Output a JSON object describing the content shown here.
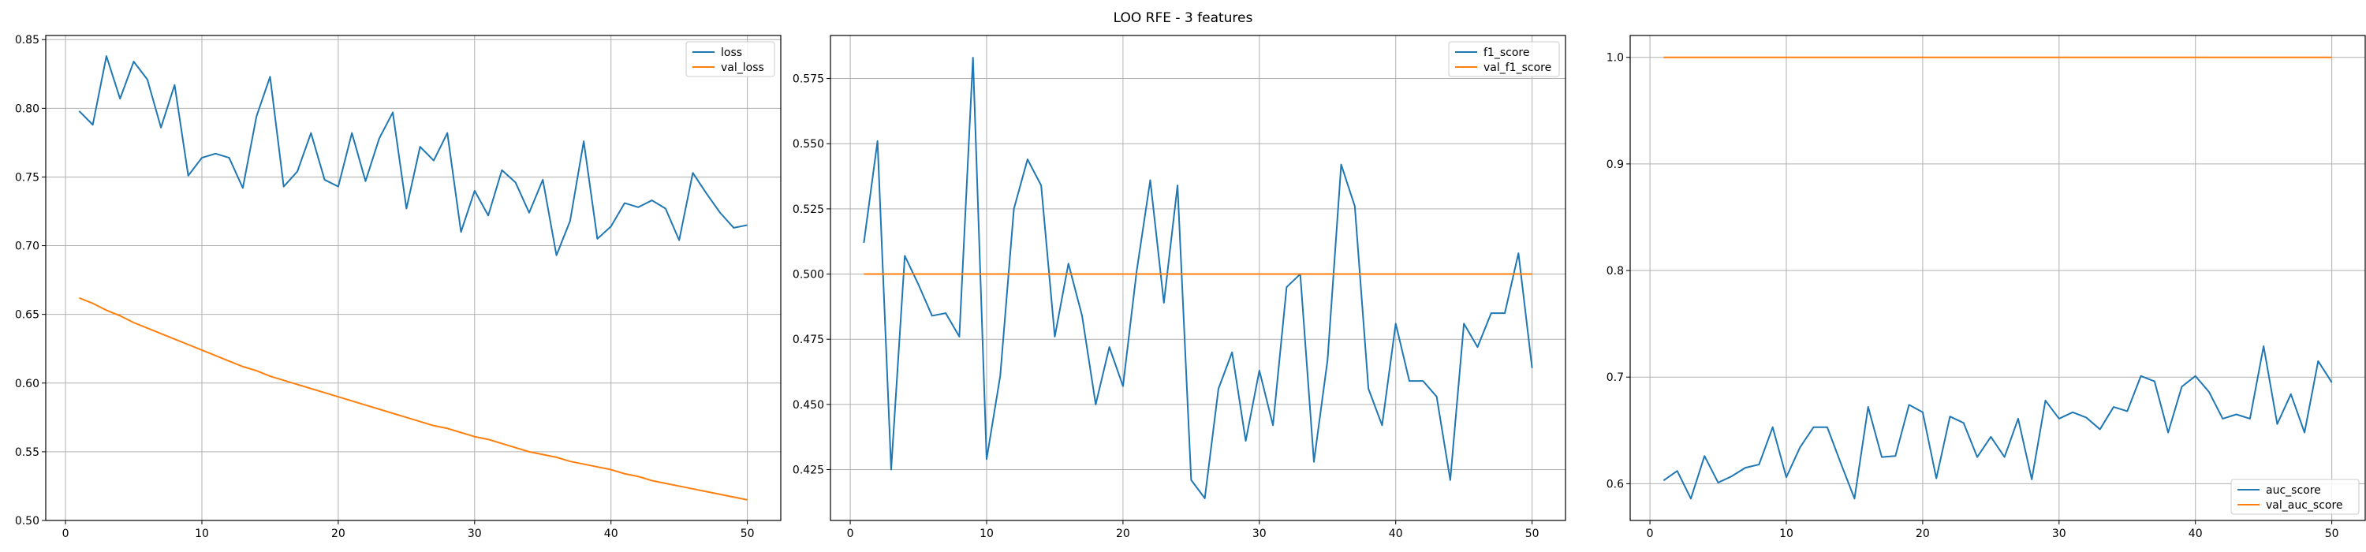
{
  "figure": {
    "suptitle": "LOO RFE - 3 features"
  },
  "colors": {
    "train": "#1f77b4",
    "val": "#ff7f0e",
    "grid": "#b0b0b0",
    "axis": "#000000"
  },
  "chart_data": [
    {
      "type": "line",
      "title": "",
      "xlabel": "",
      "ylabel": "",
      "grid": true,
      "legend_position": "upper-right",
      "xlim": [
        -1.45,
        52.45
      ],
      "ylim": [
        0.5,
        0.853
      ],
      "xticks": [
        0,
        10,
        20,
        30,
        40,
        50
      ],
      "xtick_labels": [
        "0",
        "10",
        "20",
        "30",
        "40",
        "50"
      ],
      "yticks": [
        0.5,
        0.55,
        0.6,
        0.65,
        0.7,
        0.75,
        0.8,
        0.85
      ],
      "ytick_labels": [
        "0.50",
        "0.55",
        "0.60",
        "0.65",
        "0.70",
        "0.75",
        "0.80",
        "0.85"
      ],
      "x": [
        1,
        2,
        3,
        4,
        5,
        6,
        7,
        8,
        9,
        10,
        11,
        12,
        13,
        14,
        15,
        16,
        17,
        18,
        19,
        20,
        21,
        22,
        23,
        24,
        25,
        26,
        27,
        28,
        29,
        30,
        31,
        32,
        33,
        34,
        35,
        36,
        37,
        38,
        39,
        40,
        41,
        42,
        43,
        44,
        45,
        46,
        47,
        48,
        49,
        50
      ],
      "series": [
        {
          "name": "loss",
          "color": "#1f77b4",
          "values": [
            0.798,
            0.788,
            0.838,
            0.807,
            0.834,
            0.821,
            0.786,
            0.817,
            0.751,
            0.764,
            0.767,
            0.764,
            0.742,
            0.794,
            0.823,
            0.743,
            0.754,
            0.782,
            0.748,
            0.743,
            0.782,
            0.747,
            0.778,
            0.797,
            0.727,
            0.772,
            0.762,
            0.782,
            0.71,
            0.74,
            0.722,
            0.755,
            0.746,
            0.724,
            0.748,
            0.693,
            0.718,
            0.776,
            0.705,
            0.714,
            0.731,
            0.728,
            0.733,
            0.727,
            0.704,
            0.753,
            0.738,
            0.724,
            0.713,
            0.715
          ]
        },
        {
          "name": "val_loss",
          "color": "#ff7f0e",
          "values": [
            0.662,
            0.658,
            0.653,
            0.649,
            0.644,
            0.64,
            0.636,
            0.632,
            0.628,
            0.624,
            0.62,
            0.616,
            0.612,
            0.609,
            0.605,
            0.602,
            0.599,
            0.596,
            0.593,
            0.59,
            0.587,
            0.584,
            0.581,
            0.578,
            0.575,
            0.572,
            0.569,
            0.567,
            0.564,
            0.561,
            0.559,
            0.556,
            0.553,
            0.55,
            0.548,
            0.546,
            0.543,
            0.541,
            0.539,
            0.537,
            0.534,
            0.532,
            0.529,
            0.527,
            0.525,
            0.523,
            0.521,
            0.519,
            0.517,
            0.515
          ]
        }
      ]
    },
    {
      "type": "line",
      "title": "",
      "xlabel": "",
      "ylabel": "",
      "grid": true,
      "legend_position": "upper-right",
      "xlim": [
        -1.45,
        52.45
      ],
      "ylim": [
        0.4055,
        0.5915
      ],
      "xticks": [
        0,
        10,
        20,
        30,
        40,
        50
      ],
      "xtick_labels": [
        "0",
        "10",
        "20",
        "30",
        "40",
        "50"
      ],
      "yticks": [
        0.425,
        0.45,
        0.475,
        0.5,
        0.525,
        0.55,
        0.575
      ],
      "ytick_labels": [
        "0.425",
        "0.450",
        "0.475",
        "0.500",
        "0.525",
        "0.550",
        "0.575"
      ],
      "x": [
        1,
        2,
        3,
        4,
        5,
        6,
        7,
        8,
        9,
        10,
        11,
        12,
        13,
        14,
        15,
        16,
        17,
        18,
        19,
        20,
        21,
        22,
        23,
        24,
        25,
        26,
        27,
        28,
        29,
        30,
        31,
        32,
        33,
        34,
        35,
        36,
        37,
        38,
        39,
        40,
        41,
        42,
        43,
        44,
        45,
        46,
        47,
        48,
        49,
        50
      ],
      "series": [
        {
          "name": "f1_score",
          "color": "#1f77b4",
          "values": [
            0.512,
            0.551,
            0.425,
            0.507,
            0.496,
            0.484,
            0.485,
            0.476,
            0.583,
            0.429,
            0.461,
            0.525,
            0.544,
            0.534,
            0.476,
            0.504,
            0.484,
            0.45,
            0.472,
            0.457,
            0.501,
            0.536,
            0.489,
            0.534,
            0.421,
            0.414,
            0.456,
            0.47,
            0.436,
            0.463,
            0.442,
            0.495,
            0.5,
            0.428,
            0.467,
            0.542,
            0.526,
            0.456,
            0.442,
            0.481,
            0.459,
            0.459,
            0.453,
            0.421,
            0.481,
            0.472,
            0.485,
            0.485,
            0.508,
            0.464
          ]
        },
        {
          "name": "val_f1_score",
          "color": "#ff7f0e",
          "values": [
            0.5,
            0.5,
            0.5,
            0.5,
            0.5,
            0.5,
            0.5,
            0.5,
            0.5,
            0.5,
            0.5,
            0.5,
            0.5,
            0.5,
            0.5,
            0.5,
            0.5,
            0.5,
            0.5,
            0.5,
            0.5,
            0.5,
            0.5,
            0.5,
            0.5,
            0.5,
            0.5,
            0.5,
            0.5,
            0.5,
            0.5,
            0.5,
            0.5,
            0.5,
            0.5,
            0.5,
            0.5,
            0.5,
            0.5,
            0.5,
            0.5,
            0.5,
            0.5,
            0.5,
            0.5,
            0.5,
            0.5,
            0.5,
            0.5,
            0.5
          ]
        }
      ]
    },
    {
      "type": "line",
      "title": "",
      "xlabel": "",
      "ylabel": "",
      "grid": true,
      "legend_position": "lower-right",
      "xlim": [
        -1.45,
        52.45
      ],
      "ylim": [
        0.5655,
        1.0205
      ],
      "xticks": [
        0,
        10,
        20,
        30,
        40,
        50
      ],
      "xtick_labels": [
        "0",
        "10",
        "20",
        "30",
        "40",
        "50"
      ],
      "yticks": [
        0.6,
        0.7,
        0.8,
        0.9,
        1.0
      ],
      "ytick_labels": [
        "0.6",
        "0.7",
        "0.8",
        "0.9",
        "1.0"
      ],
      "x": [
        1,
        2,
        3,
        4,
        5,
        6,
        7,
        8,
        9,
        10,
        11,
        12,
        13,
        14,
        15,
        16,
        17,
        18,
        19,
        20,
        21,
        22,
        23,
        24,
        25,
        26,
        27,
        28,
        29,
        30,
        31,
        32,
        33,
        34,
        35,
        36,
        37,
        38,
        39,
        40,
        41,
        42,
        43,
        44,
        45,
        46,
        47,
        48,
        49,
        50
      ],
      "series": [
        {
          "name": "auc_score",
          "color": "#1f77b4",
          "values": [
            0.603,
            0.612,
            0.586,
            0.626,
            0.601,
            0.607,
            0.615,
            0.618,
            0.653,
            0.606,
            0.634,
            0.653,
            0.653,
            0.619,
            0.586,
            0.672,
            0.625,
            0.626,
            0.674,
            0.667,
            0.605,
            0.663,
            0.657,
            0.625,
            0.644,
            0.625,
            0.661,
            0.604,
            0.678,
            0.661,
            0.667,
            0.662,
            0.651,
            0.672,
            0.668,
            0.701,
            0.696,
            0.648,
            0.691,
            0.701,
            0.686,
            0.661,
            0.665,
            0.661,
            0.729,
            0.656,
            0.684,
            0.648,
            0.715,
            0.695
          ]
        },
        {
          "name": "val_auc_score",
          "color": "#ff7f0e",
          "values": [
            1.0,
            1.0,
            1.0,
            1.0,
            1.0,
            1.0,
            1.0,
            1.0,
            1.0,
            1.0,
            1.0,
            1.0,
            1.0,
            1.0,
            1.0,
            1.0,
            1.0,
            1.0,
            1.0,
            1.0,
            1.0,
            1.0,
            1.0,
            1.0,
            1.0,
            1.0,
            1.0,
            1.0,
            1.0,
            1.0,
            1.0,
            1.0,
            1.0,
            1.0,
            1.0,
            1.0,
            1.0,
            1.0,
            1.0,
            1.0,
            1.0,
            1.0,
            1.0,
            1.0,
            1.0,
            1.0,
            1.0,
            1.0,
            1.0,
            1.0
          ]
        }
      ]
    }
  ]
}
